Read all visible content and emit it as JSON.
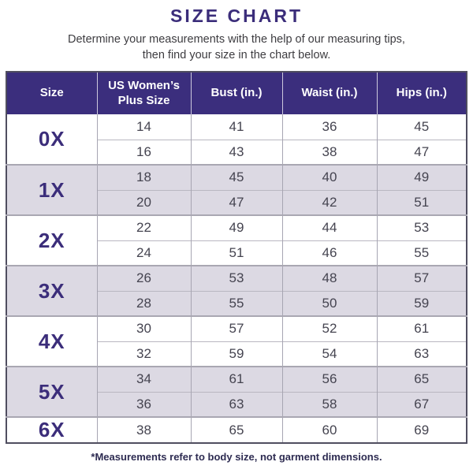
{
  "page": {
    "title": "SIZE CHART",
    "subtitle_line1": "Determine your measurements with the help of our measuring tips,",
    "subtitle_line2": "then find your size in the chart below.",
    "footnote": "*Measurements refer to body size, not garment dimensions."
  },
  "colors": {
    "header_bg": "#3b2e7d",
    "accent_text": "#3b2d7a",
    "alt_row_bg": "#dcd9e3",
    "body_text": "#454450",
    "outer_border": "#504e60"
  },
  "chart_data": {
    "type": "table",
    "title": "SIZE CHART",
    "headers": [
      "Size",
      "US Women’s Plus Size",
      "Bust (in.)",
      "Waist (in.)",
      "Hips (in.)"
    ],
    "groups": [
      {
        "size": "0X",
        "rows": [
          [
            "14",
            "41",
            "36",
            "45"
          ],
          [
            "16",
            "43",
            "38",
            "47"
          ]
        ]
      },
      {
        "size": "1X",
        "rows": [
          [
            "18",
            "45",
            "40",
            "49"
          ],
          [
            "20",
            "47",
            "42",
            "51"
          ]
        ]
      },
      {
        "size": "2X",
        "rows": [
          [
            "22",
            "49",
            "44",
            "53"
          ],
          [
            "24",
            "51",
            "46",
            "55"
          ]
        ]
      },
      {
        "size": "3X",
        "rows": [
          [
            "26",
            "53",
            "48",
            "57"
          ],
          [
            "28",
            "55",
            "50",
            "59"
          ]
        ]
      },
      {
        "size": "4X",
        "rows": [
          [
            "30",
            "57",
            "52",
            "61"
          ],
          [
            "32",
            "59",
            "54",
            "63"
          ]
        ]
      },
      {
        "size": "5X",
        "rows": [
          [
            "34",
            "61",
            "56",
            "65"
          ],
          [
            "36",
            "63",
            "58",
            "67"
          ]
        ]
      },
      {
        "size": "6X",
        "rows": [
          [
            "38",
            "65",
            "60",
            "69"
          ]
        ]
      }
    ]
  },
  "table": {
    "headers": [
      "Size",
      "US Women’s Plus Size",
      "Bust (in.)",
      "Waist (in.)",
      "Hips (in.)"
    ],
    "groups": [
      {
        "size": "0X",
        "rows": [
          [
            "14",
            "41",
            "36",
            "45"
          ],
          [
            "16",
            "43",
            "38",
            "47"
          ]
        ]
      },
      {
        "size": "1X",
        "rows": [
          [
            "18",
            "45",
            "40",
            "49"
          ],
          [
            "20",
            "47",
            "42",
            "51"
          ]
        ]
      },
      {
        "size": "2X",
        "rows": [
          [
            "22",
            "49",
            "44",
            "53"
          ],
          [
            "24",
            "51",
            "46",
            "55"
          ]
        ]
      },
      {
        "size": "3X",
        "rows": [
          [
            "26",
            "53",
            "48",
            "57"
          ],
          [
            "28",
            "55",
            "50",
            "59"
          ]
        ]
      },
      {
        "size": "4X",
        "rows": [
          [
            "30",
            "57",
            "52",
            "61"
          ],
          [
            "32",
            "59",
            "54",
            "63"
          ]
        ]
      },
      {
        "size": "5X",
        "rows": [
          [
            "34",
            "61",
            "56",
            "65"
          ],
          [
            "36",
            "63",
            "58",
            "67"
          ]
        ]
      },
      {
        "size": "6X",
        "rows": [
          [
            "38",
            "65",
            "60",
            "69"
          ]
        ]
      }
    ]
  }
}
